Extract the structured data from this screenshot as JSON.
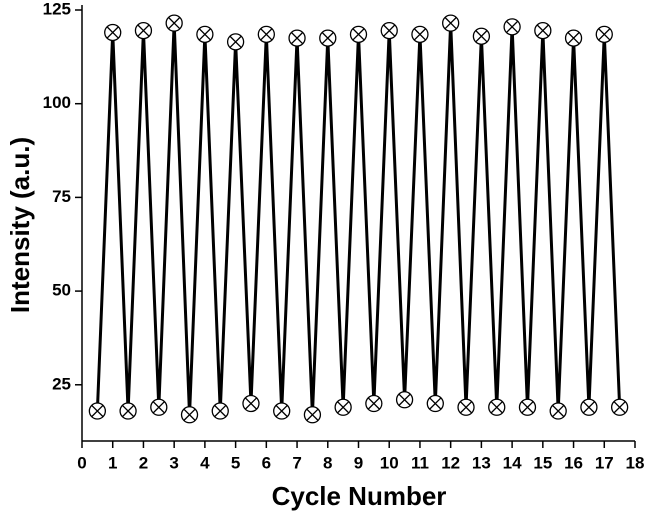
{
  "chart_data": {
    "type": "line",
    "x_label": "Cycle Number",
    "y_label": "Intensity (a.u.)",
    "x": [
      0.5,
      1,
      1.5,
      2,
      2.5,
      3,
      3.5,
      4,
      4.5,
      5,
      5.5,
      6,
      6.5,
      7,
      7.5,
      8,
      8.5,
      9,
      9.5,
      10,
      10.5,
      11,
      11.5,
      12,
      12.5,
      13,
      13.5,
      14,
      14.5,
      15,
      15.5,
      16,
      16.5,
      17,
      17.5
    ],
    "series": [
      {
        "color": "#000000",
        "values": [
          18,
          119,
          18,
          119.5,
          19,
          121.5,
          17,
          118.5,
          18,
          116.5,
          20,
          118.5,
          18,
          117.5,
          17,
          117.5,
          19,
          118.5,
          20,
          119.5,
          21,
          118.5,
          20,
          121.5,
          19,
          118,
          19,
          120.5,
          19,
          119.5,
          18,
          117.5,
          19,
          118.5,
          19
        ]
      }
    ],
    "xlim": [
      0,
      18
    ],
    "xticks": [
      0,
      1,
      2,
      3,
      4,
      5,
      6,
      7,
      8,
      9,
      10,
      11,
      12,
      13,
      14,
      15,
      16,
      17,
      18
    ],
    "ylim": [
      10,
      125
    ],
    "yticks": [
      25,
      50,
      75,
      100,
      125
    ]
  }
}
